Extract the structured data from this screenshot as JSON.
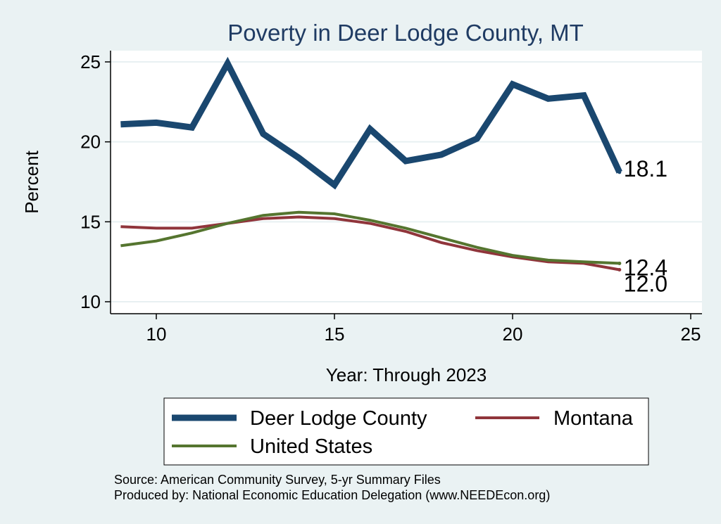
{
  "chart_data": {
    "type": "line",
    "title": "Poverty in Deer Lodge County, MT",
    "xlabel": "Year: Through 2023",
    "ylabel": "Percent",
    "xlim": [
      9,
      25
    ],
    "ylim": [
      10,
      25
    ],
    "xticks": [
      10,
      15,
      20,
      25
    ],
    "yticks": [
      10,
      15,
      20,
      25
    ],
    "grid": "horizontal",
    "legend_position": "bottom",
    "x": [
      9,
      10,
      11,
      12,
      13,
      14,
      15,
      16,
      17,
      18,
      19,
      20,
      21,
      22,
      23
    ],
    "series": [
      {
        "name": "Deer Lodge County",
        "color": "#1a476f",
        "values": [
          21.1,
          21.2,
          20.9,
          24.9,
          20.5,
          19.0,
          17.3,
          20.8,
          18.8,
          19.2,
          20.2,
          23.6,
          22.7,
          22.9,
          18.1
        ],
        "end_label": "18.1"
      },
      {
        "name": "Montana",
        "color": "#90353b",
        "values": [
          14.7,
          14.6,
          14.6,
          14.9,
          15.2,
          15.3,
          15.2,
          14.9,
          14.4,
          13.7,
          13.2,
          12.8,
          12.5,
          12.4,
          12.0
        ],
        "end_label": "12.0"
      },
      {
        "name": "United States",
        "color": "#55752f",
        "values": [
          13.5,
          13.8,
          14.3,
          14.9,
          15.4,
          15.6,
          15.5,
          15.1,
          14.6,
          14.0,
          13.4,
          12.9,
          12.6,
          12.5,
          12.4
        ],
        "end_label": "12.4"
      }
    ]
  },
  "notes": {
    "source": "Source: American Community Survey, 5-yr Summary Files",
    "produced": "Produced by: National Economic Education Delegation (www.NEEDEcon.org)"
  }
}
